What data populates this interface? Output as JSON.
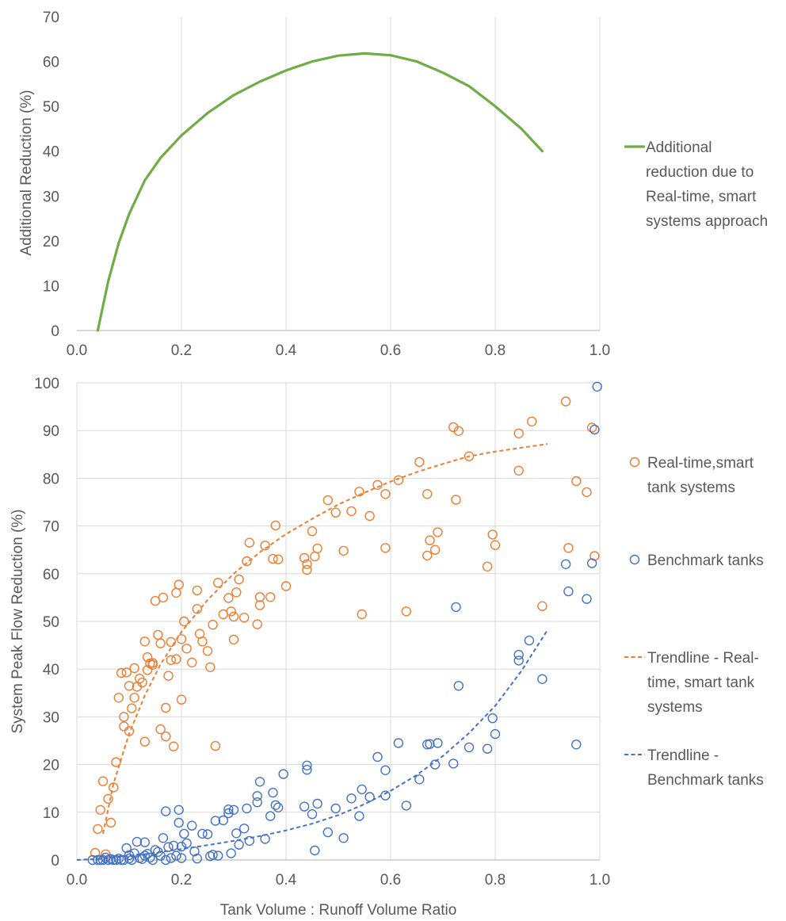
{
  "chart_data": [
    {
      "type": "line",
      "ylabel": "Additional Reduction (%)",
      "xlim": [
        0,
        1.0
      ],
      "ylim": [
        0,
        70
      ],
      "x_ticks": [
        "0.0",
        "0.2",
        "0.4",
        "0.6",
        "0.8",
        "1.0"
      ],
      "y_ticks": [
        "0",
        "10",
        "20",
        "30",
        "40",
        "50",
        "60",
        "70"
      ],
      "grid": "vertical",
      "legend_position": "right",
      "series": [
        {
          "name": "Additional reduction due to Real-time, smart systems approach",
          "name_lines": [
            "Additional",
            "reduction due to",
            "Real-time, smart",
            "systems approach"
          ],
          "color": "#70ad47",
          "x": [
            0.04,
            0.06,
            0.08,
            0.1,
            0.13,
            0.16,
            0.2,
            0.25,
            0.3,
            0.35,
            0.4,
            0.45,
            0.5,
            0.55,
            0.6,
            0.65,
            0.7,
            0.75,
            0.8,
            0.85,
            0.89
          ],
          "y": [
            0,
            11,
            19.5,
            26,
            33.5,
            38.5,
            43.5,
            48.5,
            52.5,
            55.5,
            58,
            60,
            61.3,
            61.8,
            61.4,
            60,
            57.5,
            54.5,
            50,
            45,
            40
          ]
        }
      ]
    },
    {
      "type": "scatter",
      "xlabel": "Tank Volume : Runoff Volume Ratio",
      "ylabel": "System Peak Flow Reduction (%)",
      "xlim": [
        0,
        1.0
      ],
      "ylim": [
        0,
        100
      ],
      "x_ticks": [
        "0.0",
        "0.2",
        "0.4",
        "0.6",
        "0.8",
        "1.0"
      ],
      "y_ticks": [
        "0",
        "10",
        "20",
        "30",
        "40",
        "50",
        "60",
        "70",
        "80",
        "90",
        "100"
      ],
      "grid": "both",
      "legend_position": "right",
      "series": [
        {
          "name": "Real-time,smart tank systems",
          "name_lines": [
            "Real-time,smart",
            "tank systems"
          ],
          "color": "#ed7d31",
          "marker": "open-circle",
          "x": [
            0.035,
            0.04,
            0.045,
            0.05,
            0.055,
            0.06,
            0.065,
            0.07,
            0.075,
            0.08,
            0.085,
            0.09,
            0.09,
            0.095,
            0.1,
            0.1,
            0.105,
            0.11,
            0.11,
            0.115,
            0.12,
            0.125,
            0.13,
            0.13,
            0.135,
            0.135,
            0.14,
            0.145,
            0.145,
            0.15,
            0.155,
            0.16,
            0.16,
            0.165,
            0.17,
            0.17,
            0.175,
            0.18,
            0.18,
            0.185,
            0.19,
            0.19,
            0.195,
            0.2,
            0.2,
            0.205,
            0.21,
            0.22,
            0.23,
            0.23,
            0.235,
            0.24,
            0.25,
            0.255,
            0.26,
            0.265,
            0.27,
            0.28,
            0.29,
            0.295,
            0.3,
            0.3,
            0.305,
            0.31,
            0.32,
            0.325,
            0.33,
            0.345,
            0.35,
            0.35,
            0.36,
            0.37,
            0.375,
            0.38,
            0.385,
            0.4,
            0.435,
            0.44,
            0.44,
            0.45,
            0.455,
            0.46,
            0.48,
            0.495,
            0.51,
            0.525,
            0.54,
            0.545,
            0.56,
            0.575,
            0.59,
            0.59,
            0.615,
            0.63,
            0.655,
            0.67,
            0.67,
            0.675,
            0.685,
            0.69,
            0.72,
            0.725,
            0.73,
            0.75,
            0.785,
            0.795,
            0.8,
            0.845,
            0.845,
            0.87,
            0.89,
            0.935,
            0.94,
            0.955,
            0.975,
            0.985,
            0.99
          ],
          "y": [
            1.5,
            6.5,
            10.5,
            16.5,
            1.2,
            12.8,
            7.8,
            15.2,
            20.5,
            34,
            39.2,
            28,
            30,
            39.3,
            36.5,
            27,
            31.8,
            34,
            40.2,
            36.3,
            38,
            37.2,
            45.8,
            24.8,
            42.5,
            39.8,
            41.2,
            41.3,
            40.9,
            54.3,
            47.2,
            27.4,
            45.4,
            55,
            31.9,
            25.9,
            38.6,
            45.7,
            41.9,
            23.8,
            56,
            42.1,
            57.7,
            33.6,
            46.3,
            50,
            44.3,
            41.4,
            56.5,
            52.6,
            47.4,
            45.8,
            43.8,
            40.4,
            49.3,
            23.9,
            58.1,
            51.5,
            54.9,
            52.1,
            46.2,
            51,
            56.1,
            58.8,
            50.8,
            62.6,
            66.5,
            49.4,
            53.4,
            55.1,
            65.9,
            55.1,
            63.1,
            70.1,
            63,
            57.4,
            63.3,
            62,
            60.8,
            68.9,
            63.6,
            65.3,
            75.4,
            72.8,
            64.8,
            73.1,
            77.2,
            51.5,
            72.1,
            78.6,
            76.7,
            65.4,
            79.6,
            52.1,
            83.4,
            76.7,
            63.8,
            67,
            65,
            68.7,
            90.7,
            75.5,
            89.9,
            84.6,
            61.5,
            68.2,
            66,
            89.4,
            81.6,
            91.9,
            53.2,
            96.1,
            65.4,
            79.4,
            77.1,
            90.6,
            63.7
          ]
        },
        {
          "name": "Benchmark tanks",
          "name_lines": [
            "Benchmark tanks"
          ],
          "color": "#4472c4",
          "marker": "open-circle",
          "x": [
            0.03,
            0.04,
            0.045,
            0.05,
            0.055,
            0.06,
            0.065,
            0.07,
            0.075,
            0.08,
            0.085,
            0.09,
            0.095,
            0.1,
            0.1,
            0.105,
            0.11,
            0.115,
            0.12,
            0.125,
            0.13,
            0.13,
            0.135,
            0.14,
            0.145,
            0.15,
            0.155,
            0.16,
            0.165,
            0.17,
            0.17,
            0.175,
            0.18,
            0.185,
            0.19,
            0.195,
            0.195,
            0.2,
            0.2,
            0.205,
            0.21,
            0.22,
            0.225,
            0.23,
            0.24,
            0.25,
            0.255,
            0.26,
            0.265,
            0.27,
            0.28,
            0.29,
            0.29,
            0.295,
            0.3,
            0.305,
            0.31,
            0.32,
            0.325,
            0.33,
            0.345,
            0.345,
            0.35,
            0.36,
            0.37,
            0.375,
            0.38,
            0.385,
            0.395,
            0.435,
            0.44,
            0.44,
            0.45,
            0.455,
            0.46,
            0.48,
            0.495,
            0.51,
            0.525,
            0.54,
            0.545,
            0.56,
            0.575,
            0.59,
            0.59,
            0.615,
            0.63,
            0.655,
            0.67,
            0.675,
            0.685,
            0.69,
            0.72,
            0.725,
            0.73,
            0.75,
            0.785,
            0.795,
            0.8,
            0.845,
            0.845,
            0.865,
            0.89,
            0.935,
            0.94,
            0.955,
            0.975,
            0.985,
            0.99,
            0.995
          ],
          "y": [
            0,
            0,
            0,
            0,
            0.5,
            0,
            0.2,
            0,
            0,
            0.3,
            0,
            0,
            2.5,
            1,
            0.3,
            0,
            1.4,
            3.8,
            0.4,
            0.2,
            0.9,
            3.7,
            1.3,
            0.5,
            0,
            2.1,
            1.7,
            0.9,
            4.6,
            10.2,
            0,
            2.7,
            0.4,
            3,
            0.9,
            10.5,
            7.8,
            0.4,
            2.8,
            5.5,
            3.5,
            7.2,
            1.8,
            0.3,
            5.5,
            5.4,
            0.8,
            1.1,
            8.2,
            0.9,
            8.3,
            10.6,
            9.8,
            1.4,
            10.5,
            5.6,
            3.2,
            6.6,
            10.8,
            4,
            13.4,
            12.1,
            16.4,
            4.4,
            9.2,
            14.1,
            11.5,
            11,
            18,
            11.2,
            19.8,
            18.9,
            9.6,
            2,
            11.8,
            5.8,
            10.8,
            4.6,
            12.9,
            9.2,
            14.8,
            13.2,
            21.6,
            13.5,
            18.8,
            24.5,
            11.4,
            16.9,
            24.2,
            24.3,
            20,
            24.5,
            20.2,
            53,
            36.5,
            23.6,
            23.3,
            29.7,
            26.4,
            43,
            41.8,
            46,
            37.9,
            62,
            56.3,
            24.2,
            54.7,
            62.2,
            90.2,
            99.2
          ]
        },
        {
          "type": "line",
          "style": "dashed",
          "name": "Trendline - Real-time, smart tank systems",
          "name_lines": [
            "Trendline - Real-",
            "time, smart tank",
            "systems"
          ],
          "color": "#ed7d31",
          "x": [
            0.05,
            0.07,
            0.1,
            0.13,
            0.16,
            0.2,
            0.25,
            0.3,
            0.35,
            0.4,
            0.45,
            0.5,
            0.55,
            0.6,
            0.65,
            0.7,
            0.75,
            0.8,
            0.85,
            0.9
          ],
          "y": [
            5.5,
            16,
            26.5,
            34.5,
            41,
            47.8,
            54.5,
            60,
            64.5,
            68.3,
            71.5,
            74.5,
            77,
            79.3,
            81.3,
            83,
            84.6,
            85.6,
            86.4,
            87.2
          ]
        },
        {
          "type": "line",
          "style": "dashed",
          "name": "Trendline - Benchmark tanks",
          "name_lines": [
            "Trendline -",
            "Benchmark tanks"
          ],
          "color": "#4472c4",
          "x": [
            0.0,
            0.05,
            0.1,
            0.15,
            0.2,
            0.25,
            0.3,
            0.35,
            0.4,
            0.45,
            0.5,
            0.55,
            0.6,
            0.65,
            0.7,
            0.75,
            0.8,
            0.85,
            0.9
          ],
          "y": [
            0,
            0.3,
            0.8,
            1.5,
            2.3,
            3.1,
            4,
            5,
            6.2,
            7.6,
            9.4,
            11.7,
            14.5,
            17.8,
            21.8,
            26.6,
            32.3,
            39.6,
            48.2
          ]
        }
      ]
    }
  ]
}
